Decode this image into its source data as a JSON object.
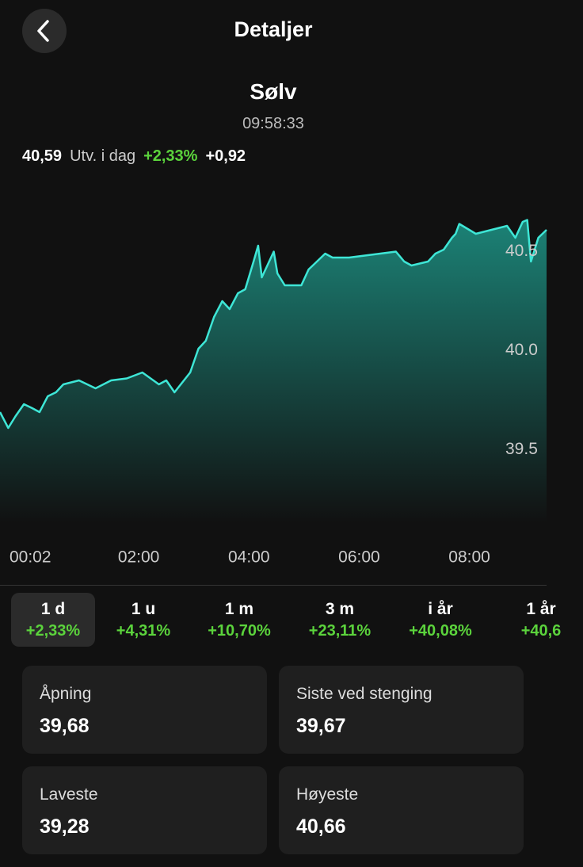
{
  "header": {
    "title": "Detaljer"
  },
  "instrument": {
    "name": "Sølv",
    "time": "09:58:33",
    "price": "40,59",
    "change_label": "Utv. i dag",
    "change_pct": "+2,33%",
    "change_abs": "+0,92"
  },
  "chart_data": {
    "type": "line",
    "color": "#3ee6d6",
    "x": [
      -31,
      -22,
      -14,
      -5,
      4,
      12,
      21,
      30,
      38,
      55,
      73,
      90,
      107,
      124,
      142,
      150,
      159,
      176,
      185,
      193,
      202,
      211,
      219,
      228,
      236,
      245,
      250,
      254,
      262,
      267,
      271,
      279,
      288,
      297,
      305,
      314,
      323,
      331,
      349,
      366,
      383,
      400,
      409,
      417,
      435,
      443,
      452,
      461,
      465,
      469,
      487,
      504,
      521,
      530,
      538,
      543,
      547,
      555,
      564
    ],
    "values": [
      39.69,
      39.61,
      39.67,
      39.73,
      39.71,
      39.69,
      39.77,
      39.79,
      39.83,
      39.85,
      39.81,
      39.85,
      39.86,
      39.89,
      39.83,
      39.85,
      39.79,
      39.89,
      40.01,
      40.05,
      40.17,
      40.25,
      40.21,
      40.29,
      40.31,
      40.45,
      40.53,
      40.37,
      40.45,
      40.5,
      40.39,
      40.33,
      40.33,
      40.33,
      40.41,
      40.45,
      40.49,
      40.47,
      40.47,
      40.48,
      40.49,
      40.5,
      40.45,
      40.43,
      40.45,
      40.49,
      40.51,
      40.57,
      40.59,
      40.64,
      40.59,
      40.61,
      40.63,
      40.57,
      40.65,
      40.66,
      40.45,
      40.57,
      40.61
    ],
    "xlim": [
      -31,
      564
    ],
    "xticks": [
      {
        "value": 2,
        "label": "00:02"
      },
      {
        "value": 120,
        "label": "02:00"
      },
      {
        "value": 240,
        "label": "04:00"
      },
      {
        "value": 360,
        "label": "06:00"
      },
      {
        "value": 480,
        "label": "08:00"
      }
    ],
    "ylim": [
      39.13,
      40.85
    ],
    "yticks": [
      39.5,
      {
        "value": 40,
        "label": "40.0"
      },
      40.5
    ]
  },
  "periods": [
    {
      "label": "1 d",
      "change": "+2,33%"
    },
    {
      "label": "1 u",
      "change": "+4,31%"
    },
    {
      "label": "1 m",
      "change": "+10,70%"
    },
    {
      "label": "3 m",
      "change": "+23,11%"
    },
    {
      "label": "i år",
      "change": "+40,08%"
    },
    {
      "label": "1 år",
      "change": "+40,6"
    }
  ],
  "stats": [
    {
      "label": "Åpning",
      "value": "39,68"
    },
    {
      "label": "Siste ved stenging",
      "value": "39,67"
    },
    {
      "label": "Laveste",
      "value": "39,28"
    },
    {
      "label": "Høyeste",
      "value": "40,66"
    }
  ]
}
